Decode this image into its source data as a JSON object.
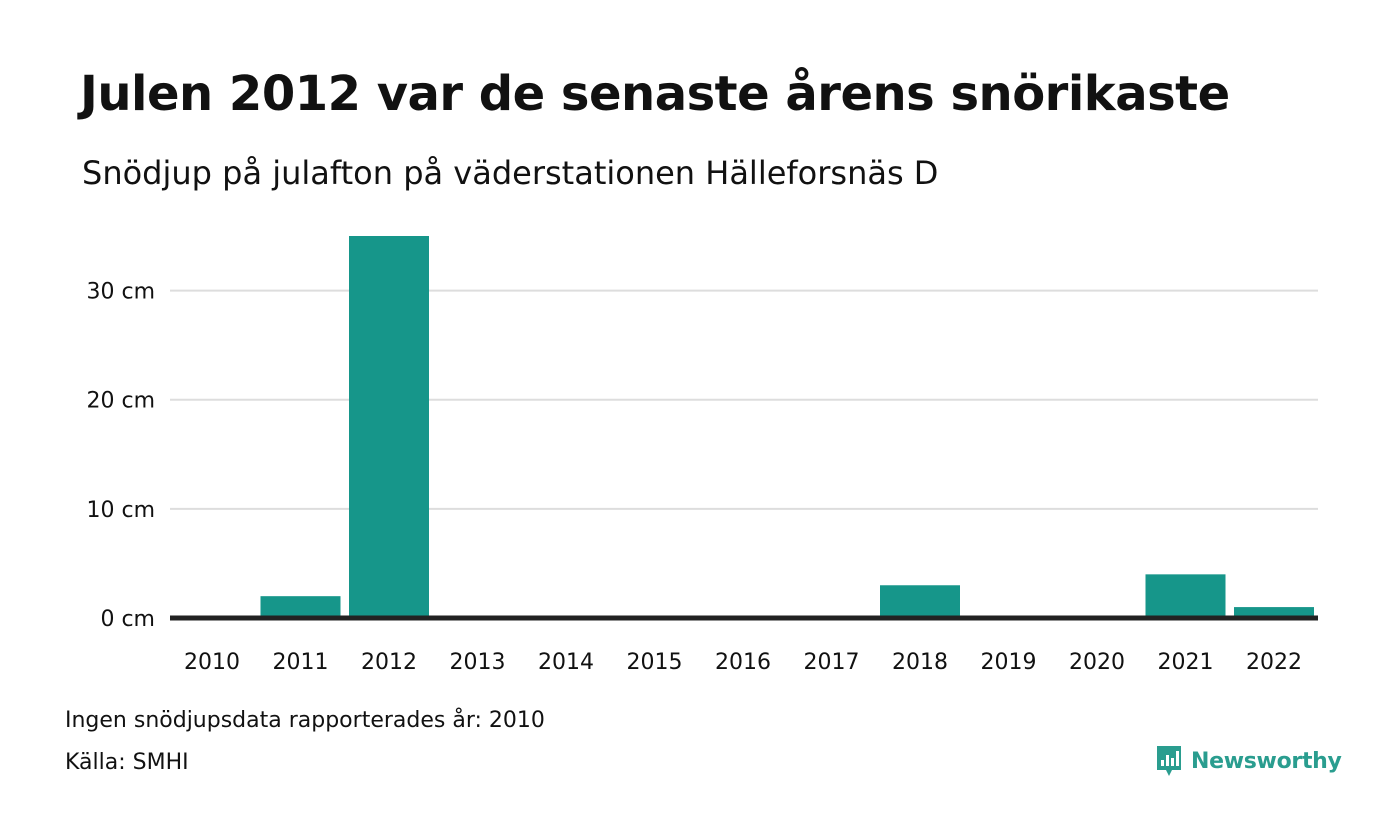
{
  "header": {
    "title": "Julen 2012 var de senaste årens snörikaste",
    "subtitle": "Snödjup på julafton på väderstationen Hälleforsnäs D"
  },
  "chart_data": {
    "type": "bar",
    "categories": [
      "2010",
      "2011",
      "2012",
      "2013",
      "2014",
      "2015",
      "2016",
      "2017",
      "2018",
      "2019",
      "2020",
      "2021",
      "2022"
    ],
    "values": [
      null,
      2,
      35,
      0,
      0,
      0,
      0,
      0,
      3,
      0,
      0,
      4,
      1
    ],
    "ylim": [
      0,
      35
    ],
    "yticks": [
      0,
      10,
      20,
      30
    ],
    "ytick_labels": [
      "0 cm",
      "10 cm",
      "20 cm",
      "30 cm"
    ],
    "grid": true,
    "bar_color": "#16968a"
  },
  "footer": {
    "note": "Ingen snödjupsdata rapporterades år: 2010",
    "source": "Källa: SMHI",
    "brand": "Newsworthy",
    "brand_color": "#2a9d8f"
  }
}
